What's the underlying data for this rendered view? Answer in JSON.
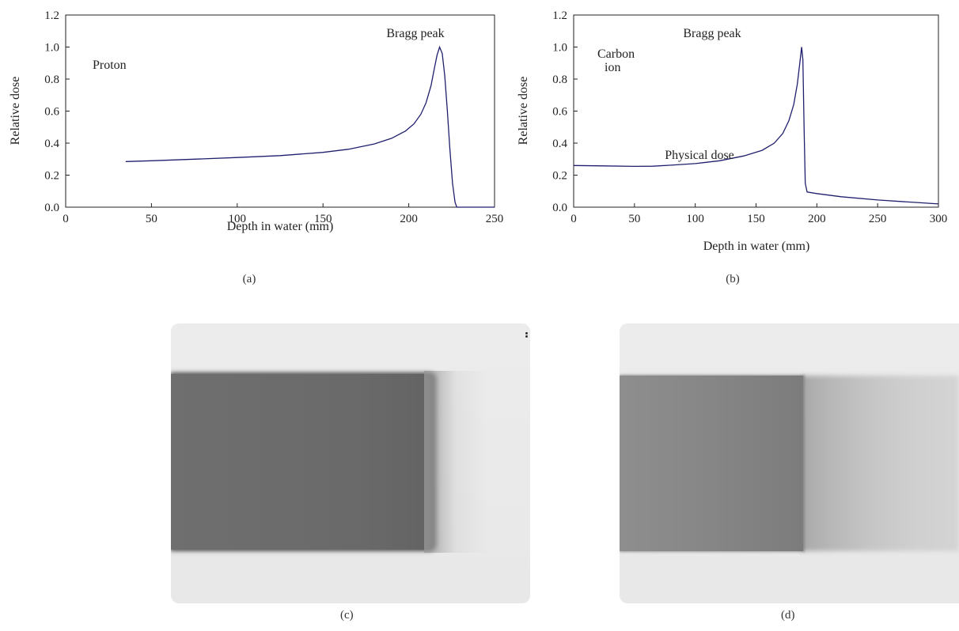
{
  "chart_data": [
    {
      "type": "line",
      "panel_label": "(a)",
      "annotation": "Proton",
      "peak_label": "Bragg peak",
      "xlabel": "Depth in water (mm)",
      "ylabel": "Relative dose",
      "xlim": [
        0,
        250
      ],
      "ylim": [
        0,
        1.2
      ],
      "x_ticks": [
        "0",
        "50",
        "100",
        "150",
        "200",
        "250"
      ],
      "y_ticks": [
        "0.0",
        "0.2",
        "0.4",
        "0.6",
        "0.8",
        "1.0",
        "1.2"
      ],
      "series": [
        {
          "color": "#1f1f6e",
          "x": [
            35,
            50,
            75,
            100,
            125,
            150,
            165,
            180,
            190,
            198,
            203,
            207,
            210,
            213,
            215,
            216.5,
            218,
            219.5,
            221,
            222.5,
            224,
            225.5,
            227,
            228,
            235,
            250
          ],
          "y": [
            0.285,
            0.29,
            0.3,
            0.31,
            0.322,
            0.342,
            0.362,
            0.395,
            0.43,
            0.475,
            0.52,
            0.58,
            0.65,
            0.76,
            0.87,
            0.95,
            1.0,
            0.96,
            0.82,
            0.6,
            0.36,
            0.15,
            0.03,
            0.0,
            0.0,
            0.0
          ]
        }
      ]
    },
    {
      "type": "line",
      "panel_label": "(b)",
      "annotation": [
        "Carbon",
        "ion"
      ],
      "peak_label": "Bragg peak",
      "curve_label": "Physical dose",
      "xlabel": "Depth in water (mm)",
      "ylabel": "Relative dose",
      "xlim": [
        0,
        300
      ],
      "ylim": [
        0,
        1.2
      ],
      "x_ticks": [
        "0",
        "50",
        "100",
        "150",
        "200",
        "250",
        "300"
      ],
      "y_ticks": [
        "0.0",
        "0.2",
        "0.4",
        "0.6",
        "0.8",
        "1.0",
        "1.2"
      ],
      "series": [
        {
          "color": "#1f1f6e",
          "x": [
            0,
            25,
            50,
            65,
            80,
            100,
            120,
            140,
            155,
            165,
            172,
            177,
            181,
            184,
            186,
            187.5,
            188.5,
            189.5,
            190.5,
            192,
            200,
            220,
            250,
            280,
            300
          ],
          "y": [
            0.26,
            0.258,
            0.255,
            0.256,
            0.262,
            0.272,
            0.29,
            0.32,
            0.355,
            0.4,
            0.46,
            0.54,
            0.64,
            0.77,
            0.9,
            1.0,
            0.92,
            0.5,
            0.15,
            0.095,
            0.085,
            0.065,
            0.045,
            0.03,
            0.02
          ]
        }
      ]
    }
  ],
  "images": [
    {
      "panel_label": "(c)"
    },
    {
      "panel_label": "(d)"
    }
  ]
}
